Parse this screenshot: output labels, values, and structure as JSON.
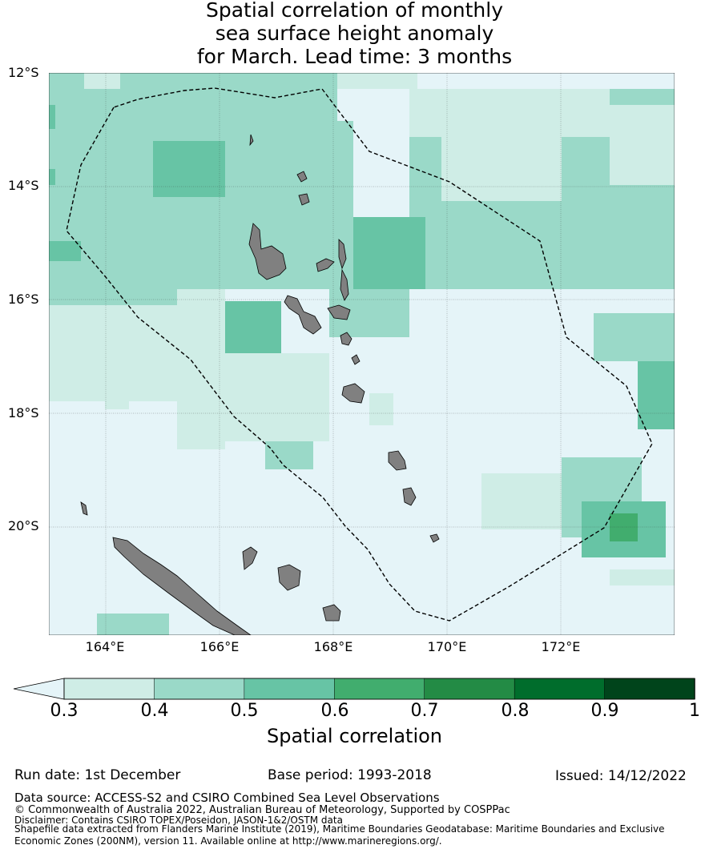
{
  "title_lines": [
    "Spatial correlation of monthly",
    "sea surface height anomaly",
    "for March. Lead time: 3 months"
  ],
  "map": {
    "lat_labels": [
      "12°S",
      "14°S",
      "16°S",
      "18°S",
      "20°S"
    ],
    "lon_labels": [
      "164°E",
      "166°E",
      "168°E",
      "170°E",
      "172°E"
    ],
    "lon_range": [
      163,
      174
    ],
    "lat_range": [
      -21.9,
      -12
    ]
  },
  "colorbar": {
    "ticks": [
      "0.3",
      "0.4",
      "0.5",
      "0.6",
      "0.7",
      "0.8",
      "0.9",
      "1"
    ],
    "colors": [
      "#cfede6",
      "#9ad9c8",
      "#67c4a5",
      "#41ad6e",
      "#238b45",
      "#006d2c",
      "#00441b"
    ],
    "below_color": "#e5f4f8",
    "label": "Spatial correlation"
  },
  "footer": {
    "run_date": "Run date: 1st December",
    "base_period": "Base period: 1993-2018",
    "issued": "Issued: 14/12/2022",
    "data_source": "Data source: ACCESS-S2 and CSIRO Combined Sea Level Observations",
    "copyright": "© Commonwealth of Australia 2022, Australian Bureau of Meteorology, Supported by COSPPac",
    "disclaimer": "Disclaimer: Contains CSIRO TOPEX/Poseidon, JASON-1&2/OSTM data",
    "shapefile_1": "Shapefile data extracted from Flanders Marine Institute (2019), Maritime Boundaries Geodatabase: Maritime Boundaries and Exclusive",
    "shapefile_2": "Economic Zones (200NM), version 11. Available online at http://www.marineregions.org/."
  }
}
